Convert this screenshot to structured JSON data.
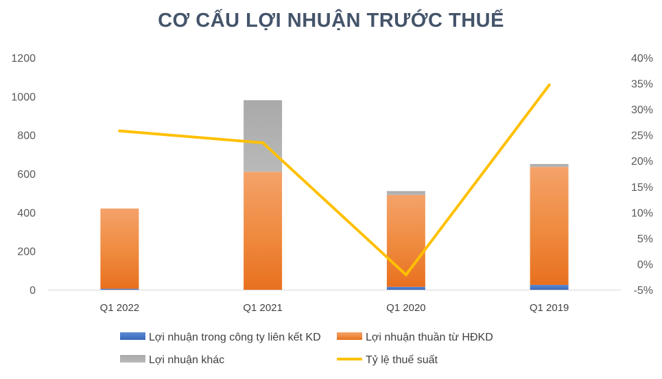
{
  "chart_data": {
    "type": "bar",
    "title": "CƠ CẤU LỢI NHUẬN TRƯỚC THUẾ",
    "categories": [
      "Q1 2022",
      "Q1 2021",
      "Q1 2020",
      "Q1 2019"
    ],
    "stacked": true,
    "series": [
      {
        "name": "Lợi nhuận trong công ty liên kết KD",
        "type": "bar",
        "axis": "left",
        "color": "#4472c4",
        "values": [
          5,
          0,
          15,
          25
        ]
      },
      {
        "name": "Lợi nhuận thuần từ HĐKD",
        "type": "bar",
        "axis": "left",
        "color": "#ed7d31",
        "values": [
          415,
          610,
          475,
          610
        ]
      },
      {
        "name": "Lợi nhuận khác",
        "type": "bar",
        "axis": "left",
        "color": "#a5a5a5",
        "values": [
          0,
          370,
          20,
          15
        ]
      },
      {
        "name": "Tỷ lệ thuế suất",
        "type": "line",
        "axis": "right",
        "color": "#ffc000",
        "values": [
          0.258,
          0.235,
          -0.021,
          0.347
        ]
      }
    ],
    "y_left": {
      "min": 0,
      "max": 1200,
      "ticks": [
        "0",
        "200",
        "400",
        "600",
        "800",
        "1000",
        "1200"
      ]
    },
    "y_right": {
      "min": -0.05,
      "max": 0.4,
      "ticks": [
        "-5%",
        "0%",
        "5%",
        "10%",
        "15%",
        "20%",
        "25%",
        "30%",
        "35%",
        "40%"
      ]
    },
    "grid": false,
    "legend_position": "bottom"
  }
}
